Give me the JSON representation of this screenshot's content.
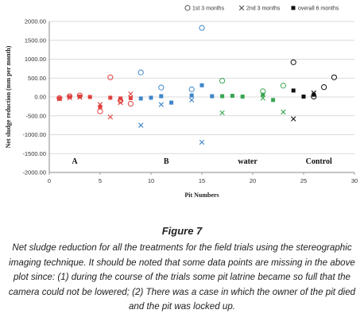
{
  "chart_data": {
    "type": "scatter",
    "title": "",
    "xlabel": "Pit Numbers",
    "ylabel": "Net sludge reduction (mm per month)",
    "xlim": [
      0,
      30
    ],
    "ylim": [
      -2000,
      2000
    ],
    "x_ticks": [
      "0",
      "5",
      "10",
      "15",
      "20",
      "25",
      "30"
    ],
    "y_ticks": [
      "2000.00",
      "1500.00",
      "1000.00",
      "500.00",
      "0.00",
      "-500.00",
      "-1000.00",
      "-1500.00",
      "-2000.00"
    ],
    "grid": "horizontal",
    "legend_position": "top",
    "legend": [
      "1st 3 months",
      "2nd 3 months",
      "overall 6 months"
    ],
    "regions": [
      {
        "label": "A",
        "x": 2.5,
        "y": -1700
      },
      {
        "label": "B",
        "x": 11.5,
        "y": -1700
      },
      {
        "label": "water",
        "x": 19.5,
        "y": -1700
      },
      {
        "label": "Control",
        "x": 26.5,
        "y": -1700
      }
    ],
    "groups": [
      {
        "group": "A",
        "color": "#e0423f",
        "first": [
          [
            1,
            -30
          ],
          [
            2,
            20
          ],
          [
            3,
            40
          ],
          [
            5,
            -380
          ],
          [
            6,
            520
          ],
          [
            7,
            -100
          ],
          [
            8,
            -180
          ]
        ],
        "second": [
          [
            1,
            -50
          ],
          [
            2,
            -20
          ],
          [
            3,
            -10
          ],
          [
            5,
            -200
          ],
          [
            6,
            -530
          ],
          [
            7,
            -150
          ],
          [
            8,
            80
          ]
        ],
        "overall": [
          [
            1,
            -40
          ],
          [
            2,
            0
          ],
          [
            3,
            10
          ],
          [
            4,
            0
          ],
          [
            5,
            -260
          ],
          [
            6,
            -20
          ],
          [
            7,
            -40
          ],
          [
            8,
            -30
          ]
        ]
      },
      {
        "group": "B",
        "color": "#3f86c8",
        "first": [
          [
            9,
            650
          ],
          [
            11,
            250
          ],
          [
            14,
            200
          ],
          [
            15,
            1830
          ]
        ],
        "second": [
          [
            9,
            -750
          ],
          [
            11,
            -200
          ],
          [
            14,
            -80
          ],
          [
            15,
            -1200
          ]
        ],
        "overall": [
          [
            9,
            -40
          ],
          [
            10,
            -20
          ],
          [
            11,
            20
          ],
          [
            12,
            -150
          ],
          [
            14,
            40
          ],
          [
            15,
            310
          ],
          [
            16,
            20
          ]
        ]
      },
      {
        "group": "water",
        "color": "#3aa552",
        "first": [
          [
            17,
            430
          ],
          [
            21,
            150
          ],
          [
            23,
            300
          ]
        ],
        "second": [
          [
            17,
            -420
          ],
          [
            21,
            -30
          ],
          [
            23,
            -400
          ]
        ],
        "overall": [
          [
            17,
            20
          ],
          [
            18,
            30
          ],
          [
            19,
            10
          ],
          [
            21,
            60
          ],
          [
            22,
            -80
          ]
        ]
      },
      {
        "group": "Control",
        "color": "#111111",
        "first": [
          [
            24,
            920
          ],
          [
            26,
            10
          ],
          [
            27,
            260
          ],
          [
            28,
            520
          ]
        ],
        "second": [
          [
            24,
            -580
          ],
          [
            26,
            110
          ]
        ],
        "overall": [
          [
            24,
            170
          ],
          [
            25,
            10
          ],
          [
            26,
            60
          ]
        ]
      }
    ]
  },
  "figure": {
    "title": "Figure 7",
    "caption": "Net sludge reduction for all the treatments for the field trials using the stereographic imaging technique. It should be noted that some data points are missing in the above plot since: (1) during the course of the trials some pit latrine became so full that the camera could not be lowered; (2) There was a case in which the owner of the pit died and the pit was locked up."
  }
}
